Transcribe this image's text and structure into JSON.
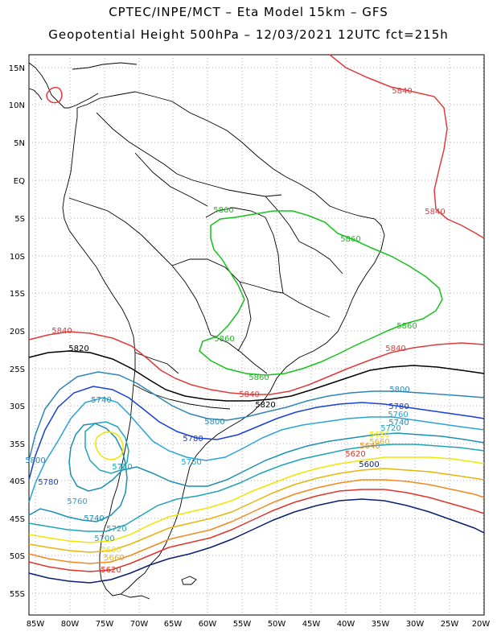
{
  "header": {
    "title_line1": "CPTEC/INPE/MCT –  Eta Model 15km – GFS",
    "title_line2": "Geopotential Height 500hPa – 12/03/2021 12UTC fct=215h"
  },
  "axes": {
    "lat_labels": [
      "15N",
      "10N",
      "5N",
      "EQ",
      "5S",
      "10S",
      "15S",
      "20S",
      "25S",
      "30S",
      "35S",
      "40S",
      "45S",
      "50S",
      "55S"
    ],
    "lon_labels": [
      "85W",
      "80W",
      "75W",
      "70W",
      "65W",
      "60W",
      "55W",
      "50W",
      "45W",
      "40W",
      "35W",
      "30W",
      "25W",
      "20W"
    ],
    "grid": "dotted"
  },
  "colors": {
    "c5600": "#0a1f6e",
    "c5620": "#e0352b",
    "c5640": "#f28a1e",
    "c5660": "#e8b50b",
    "c5680": "#f2e500",
    "c5700": "#14a7c7",
    "c5720": "#1fa5b8",
    "c5740": "#1d8fb3",
    "c5760": "#2aa3d9",
    "c5780": "#1740d6",
    "c5800": "#2d86b5",
    "c5820": "#000000",
    "c5840": "#e03b3b",
    "c5860": "#15c21a"
  },
  "contour_labels": [
    {
      "text": "5840",
      "color": "c5840"
    },
    {
      "text": "5840",
      "color": "c5840"
    },
    {
      "text": "5860",
      "color": "c5860"
    },
    {
      "text": "5860",
      "color": "c5860"
    },
    {
      "text": "5860",
      "color": "c5860"
    },
    {
      "text": "5860",
      "color": "c5860"
    },
    {
      "text": "5860",
      "color": "c5860"
    },
    {
      "text": "5840",
      "color": "c5840"
    },
    {
      "text": "5840",
      "color": "c5840"
    },
    {
      "text": "5820",
      "color": "c5820"
    },
    {
      "text": "5840",
      "color": "c5840"
    },
    {
      "text": "5820",
      "color": "c5820"
    },
    {
      "text": "5800",
      "color": "c5800"
    },
    {
      "text": "5780",
      "color": "c5780"
    },
    {
      "text": "5760",
      "color": "c5760"
    },
    {
      "text": "5740",
      "color": "c5740"
    },
    {
      "text": "5720",
      "color": "c5720"
    },
    {
      "text": "5680",
      "color": "c5680"
    },
    {
      "text": "5660",
      "color": "c5660"
    },
    {
      "text": "5640",
      "color": "c5640"
    },
    {
      "text": "5620",
      "color": "c5620"
    },
    {
      "text": "5600",
      "color": "c5600"
    },
    {
      "text": "5740",
      "color": "c5740"
    },
    {
      "text": "5800",
      "color": "c5800"
    },
    {
      "text": "5780",
      "color": "c5780"
    },
    {
      "text": "5760",
      "color": "c5760"
    },
    {
      "text": "5720",
      "color": "c5720"
    },
    {
      "text": "5780",
      "color": "c5780"
    },
    {
      "text": "5800",
      "color": "c5800"
    },
    {
      "text": "5760",
      "color": "c5760"
    },
    {
      "text": "5740",
      "color": "c5740"
    },
    {
      "text": "5720",
      "color": "c5720"
    },
    {
      "text": "5700",
      "color": "c5700"
    },
    {
      "text": "5680",
      "color": "c5680"
    },
    {
      "text": "5660",
      "color": "c5660"
    },
    {
      "text": "5620",
      "color": "c5620"
    }
  ]
}
